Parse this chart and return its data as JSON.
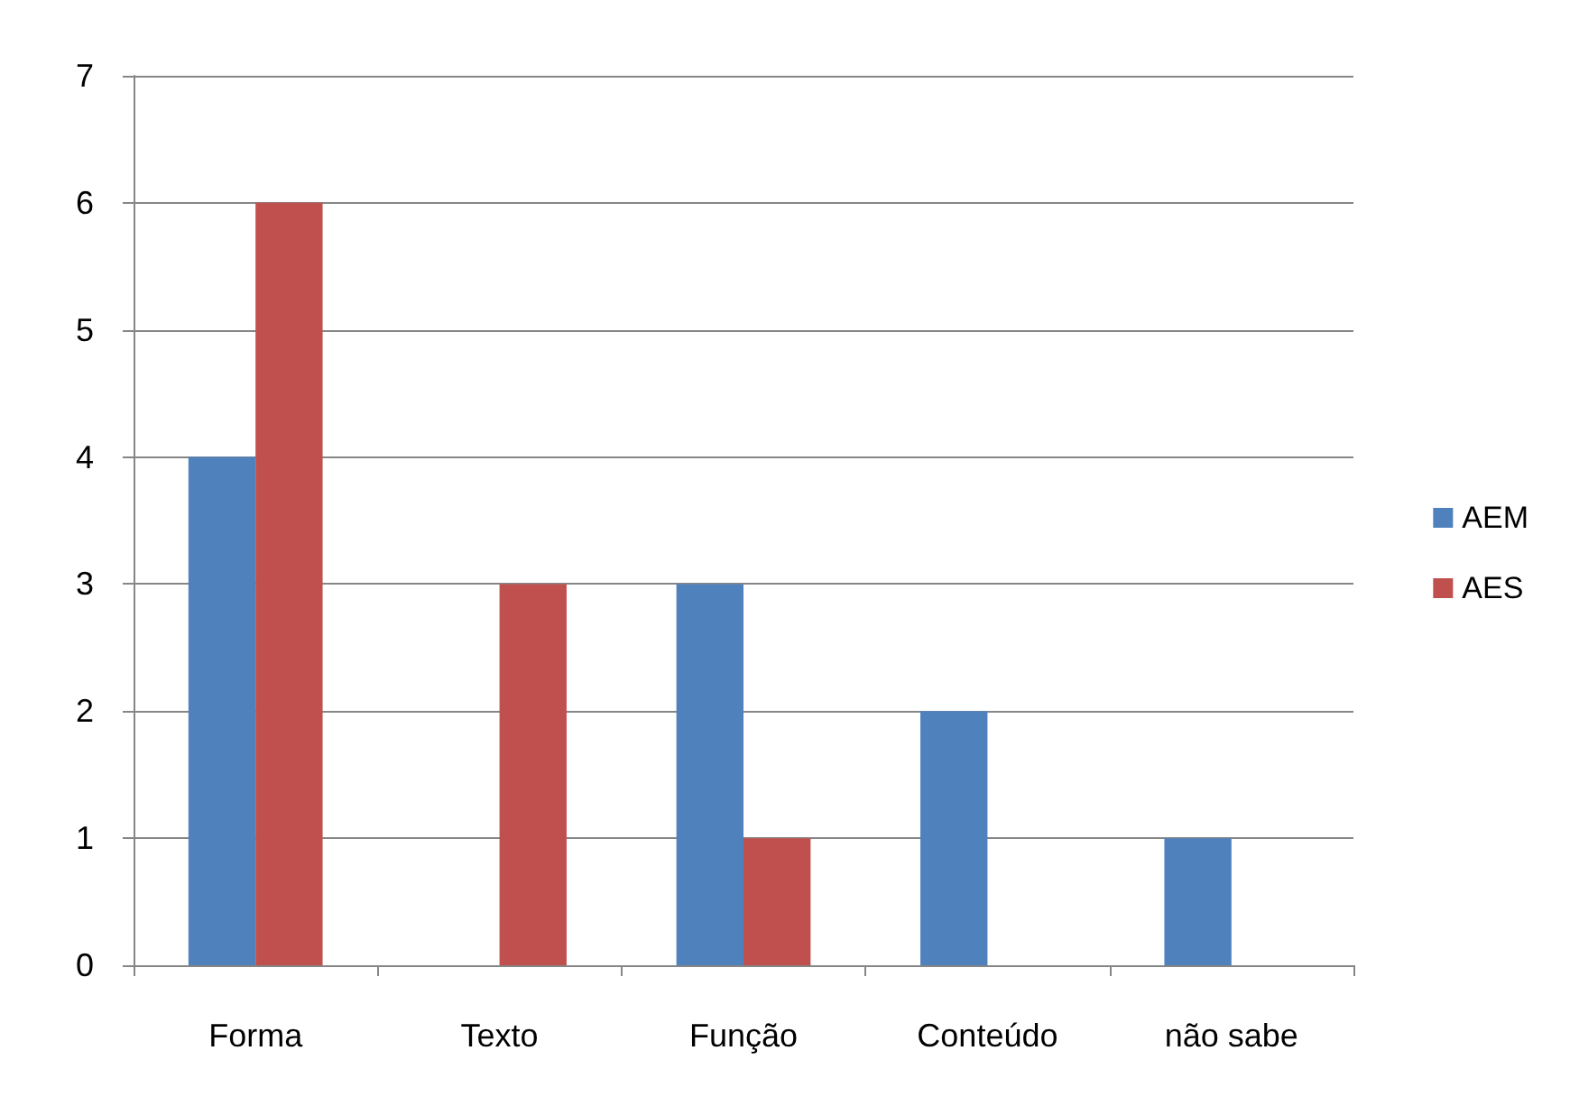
{
  "chart_data": {
    "type": "bar",
    "categories": [
      "Forma",
      "Texto",
      "Função",
      "Conteúdo",
      "não sabe"
    ],
    "series": [
      {
        "name": "AEM",
        "color": "#4f81bd",
        "values": [
          4,
          0,
          3,
          2,
          1
        ]
      },
      {
        "name": "AES",
        "color": "#c0504d",
        "values": [
          6,
          3,
          1,
          0,
          0
        ]
      }
    ],
    "ylim": [
      0,
      7
    ],
    "yticks": [
      0,
      1,
      2,
      3,
      4,
      5,
      6,
      7
    ],
    "grid": "y",
    "legend": "right"
  }
}
